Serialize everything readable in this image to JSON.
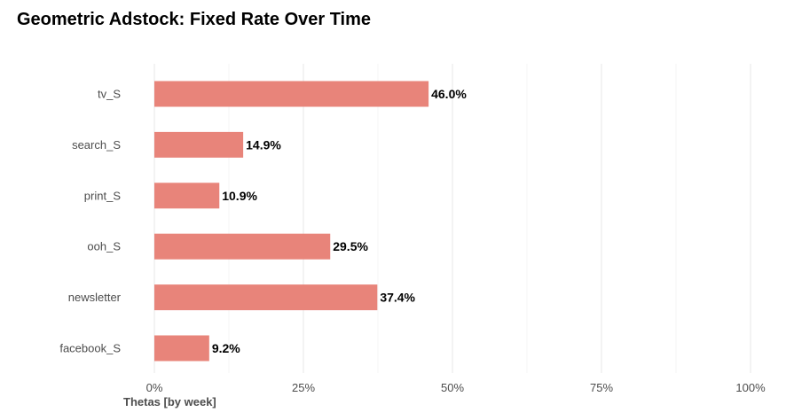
{
  "chart_data": {
    "type": "bar",
    "orientation": "horizontal",
    "title": "Geometric Adstock: Fixed Rate Over Time",
    "xlabel": "Thetas [by week]",
    "ylabel": "",
    "categories": [
      "tv_S",
      "search_S",
      "print_S",
      "ooh_S",
      "newsletter",
      "facebook_S"
    ],
    "values": [
      0.46,
      0.149,
      0.109,
      0.295,
      0.374,
      0.092
    ],
    "data_labels": [
      "46.0%",
      "14.9%",
      "10.9%",
      "29.5%",
      "37.4%",
      "9.2%"
    ],
    "xlim": [
      0,
      1
    ],
    "x_ticks": [
      0,
      0.25,
      0.5,
      0.75,
      1
    ],
    "x_tick_labels": [
      "0%",
      "25%",
      "50%",
      "75%",
      "100%"
    ],
    "grid": true,
    "legend": "none",
    "colors": {
      "bar": "#e8847a",
      "grid_major": "#ebebeb",
      "grid_minor": "#f5f5f5"
    }
  }
}
